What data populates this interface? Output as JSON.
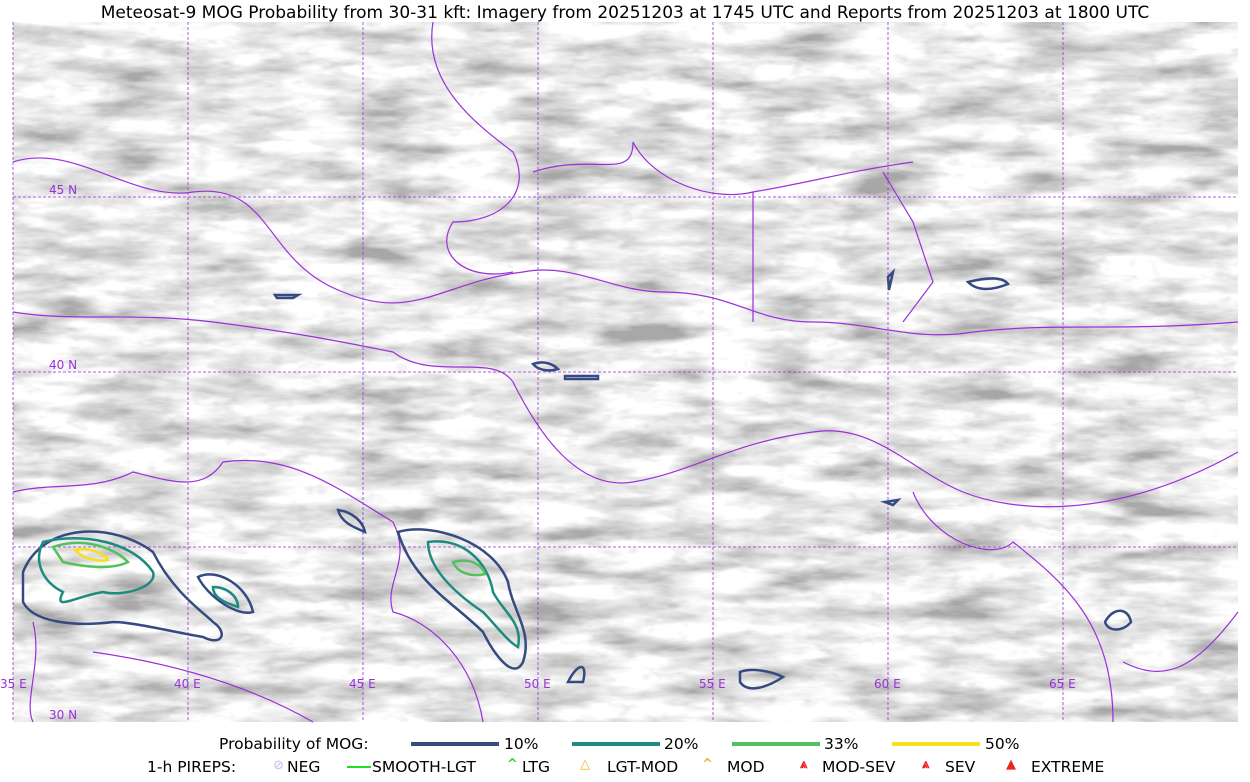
{
  "title": "Meteosat-9 MOG Probability from 30-31 kft: Imagery from 20251203 at 1745 UTC and Reports from 20251203 at 1800 UTC",
  "map": {
    "lon_labels": [
      "35 E",
      "40 E",
      "45 E",
      "50 E",
      "55 E",
      "60 E",
      "65 E"
    ],
    "lat_labels": [
      "45 N",
      "40 N",
      "30 N"
    ],
    "gridline_color": "#9b30d9",
    "border_color": "#9b30d9"
  },
  "legend": {
    "mog_title": "Probability of MOG:",
    "mog_levels": [
      {
        "label": "10%",
        "color": "#344a80"
      },
      {
        "label": "20%",
        "color": "#1f8a80"
      },
      {
        "label": "33%",
        "color": "#55c060"
      },
      {
        "label": "50%",
        "color": "#f5e020"
      }
    ],
    "pirep_title": "1-h PIREPS:",
    "pireps": [
      {
        "label": "NEG",
        "color": "#c8c8f0",
        "icon": "neg-icon"
      },
      {
        "label": "SMOOTH-LGT",
        "color": "#22dd22",
        "icon": "smooth-lgt-icon"
      },
      {
        "label": "LTG",
        "color": "#22dd22",
        "icon": "ltg-icon"
      },
      {
        "label": "LGT-MOD",
        "color": "#f5b020",
        "icon": "lgt-mod-icon"
      },
      {
        "label": "MOD",
        "color": "#f5b020",
        "icon": "mod-icon"
      },
      {
        "label": "MOD-SEV",
        "color": "#ee2222",
        "icon": "mod-sev-icon"
      },
      {
        "label": "SEV",
        "color": "#ee2222",
        "icon": "sev-icon"
      },
      {
        "label": "EXTREME",
        "color": "#ee2222",
        "icon": "extreme-icon"
      }
    ]
  }
}
